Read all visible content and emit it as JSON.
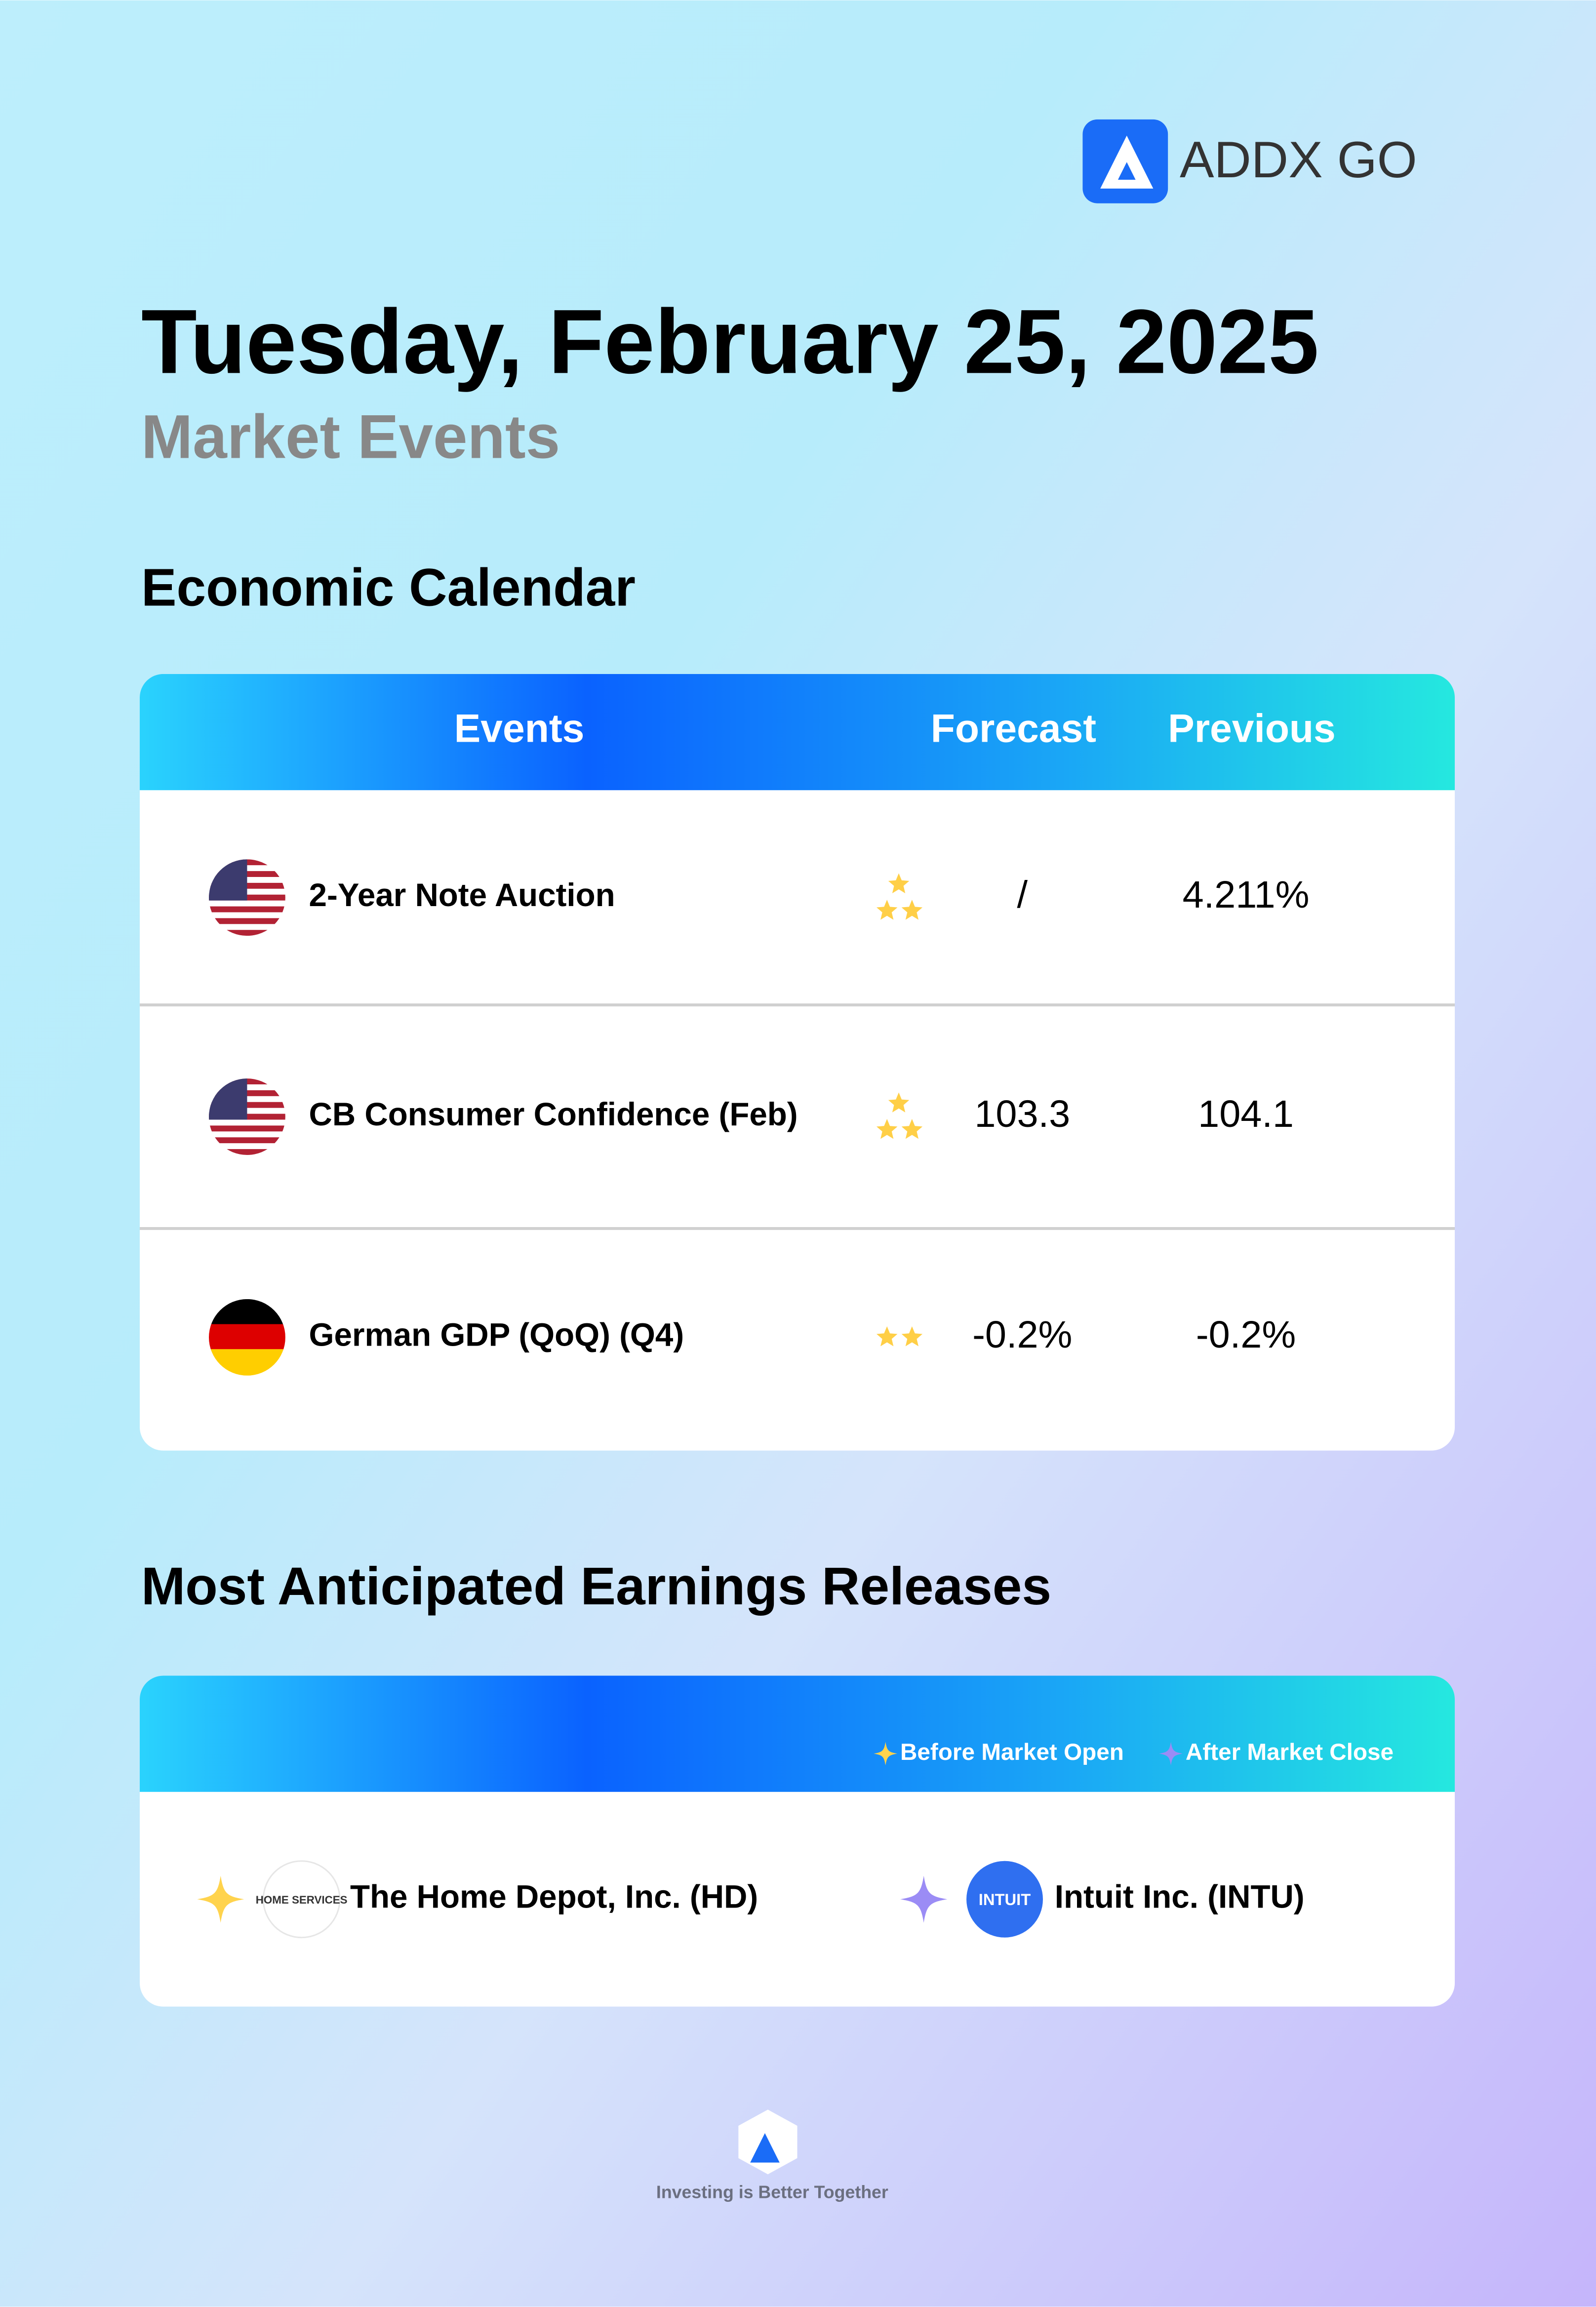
{
  "header": {
    "brand": "ADDX GO",
    "title": "Tuesday, February 25, 2025",
    "subtitle": "Market Events"
  },
  "economic_calendar": {
    "title": "Economic Calendar",
    "columns": [
      "Events",
      "Forecast",
      "Previous"
    ],
    "rows": [
      {
        "event": "2-Year Note Auction",
        "importance": 3,
        "forecast": "/",
        "previous": "4.211%"
      },
      {
        "event": "CB Consumer Confidence (Feb)",
        "importance": 3,
        "forecast": "103.3",
        "previous": "104.1"
      },
      {
        "event": "German GDP (QoQ) (Q4)",
        "importance": 2,
        "forecast": "-0.2%",
        "previous": "-0.2%"
      }
    ]
  },
  "earnings": {
    "title": "Most Anticipated Earnings Releases",
    "legend": [
      "Before Market Open",
      "After Market Close"
    ],
    "items": [
      {
        "company": "The Home Depot, Inc. (HD)",
        "logo_text": "HOME SERVICES"
      },
      {
        "company": "Intuit Inc. (INTU)",
        "logo_text": "INTUIT"
      }
    ]
  },
  "footer": {
    "tagline": "Investing is Better Together"
  }
}
